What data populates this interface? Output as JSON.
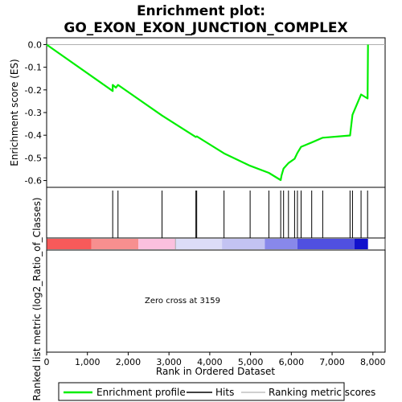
{
  "chart_data": {
    "type": "line",
    "title_line1": "Enrichment plot:",
    "title_line2": "GO_EXON_EXON_JUNCTION_COMPLEX",
    "xlabel": "Rank in Ordered Dataset",
    "ylabel_top": "Enrichment score (ES)",
    "ylabel_bottom": "Ranked list metric (log2_Ratio_of_Classes)",
    "xlim": [
      0,
      8300
    ],
    "ylim": [
      -0.63,
      0.03
    ],
    "x_ticks": [
      0,
      1000,
      2000,
      3000,
      4000,
      5000,
      6000,
      7000,
      8000
    ],
    "x_tick_labels": [
      "0",
      "1,000",
      "2,000",
      "3,000",
      "4,000",
      "5,000",
      "6,000",
      "7,000",
      "8,000"
    ],
    "y_ticks": [
      0.0,
      -0.1,
      -0.2,
      -0.3,
      -0.4,
      -0.5,
      -0.6
    ],
    "y_tick_labels": [
      "0.0",
      "-0.1",
      "-0.2",
      "-0.3",
      "-0.4",
      "-0.5",
      "-0.6"
    ],
    "annotation": "Zero cross at 3159",
    "zero_cross": 3159,
    "n_genes": 7880,
    "series": [
      {
        "name": "Enrichment profile",
        "color": "#00ee00",
        "x": [
          0,
          1620,
          1620,
          1700,
          1750,
          2830,
          3660,
          3680,
          4350,
          4990,
          5450,
          5740,
          5760,
          5810,
          5930,
          6080,
          6150,
          6240,
          6500,
          6770,
          7440,
          7500,
          7710,
          7870,
          7880
        ],
        "y": [
          0.0,
          -0.205,
          -0.178,
          -0.19,
          -0.178,
          -0.313,
          -0.408,
          -0.405,
          -0.48,
          -0.535,
          -0.566,
          -0.598,
          -0.577,
          -0.547,
          -0.523,
          -0.504,
          -0.478,
          -0.451,
          -0.432,
          -0.411,
          -0.401,
          -0.31,
          -0.22,
          -0.238,
          0.0
        ]
      }
    ],
    "hits": [
      1620,
      1750,
      2830,
      3660,
      3680,
      4350,
      4990,
      5450,
      5740,
      5810,
      5930,
      6080,
      6150,
      6240,
      6500,
      6770,
      7440,
      7500,
      7710,
      7870
    ],
    "metric_bands": [
      {
        "from": 0,
        "to": 1100,
        "color": "#f75a5a"
      },
      {
        "from": 1100,
        "to": 2250,
        "color": "#f78f8f"
      },
      {
        "from": 2250,
        "to": 3159,
        "color": "#fbc0de"
      },
      {
        "from": 3159,
        "to": 4300,
        "color": "#dcdcf7"
      },
      {
        "from": 4300,
        "to": 5350,
        "color": "#c3c3f2"
      },
      {
        "from": 5350,
        "to": 6150,
        "color": "#8888ea"
      },
      {
        "from": 6150,
        "to": 7550,
        "color": "#5050e0"
      },
      {
        "from": 7550,
        "to": 7880,
        "color": "#1111cc"
      }
    ],
    "legend": [
      {
        "label": "Enrichment profile",
        "color": "#00ee00"
      },
      {
        "label": "Hits",
        "color": "#000000"
      },
      {
        "label": "Ranking metric scores",
        "color": "#c0c0c0"
      }
    ],
    "legend_position": "bottom",
    "grid": false
  }
}
